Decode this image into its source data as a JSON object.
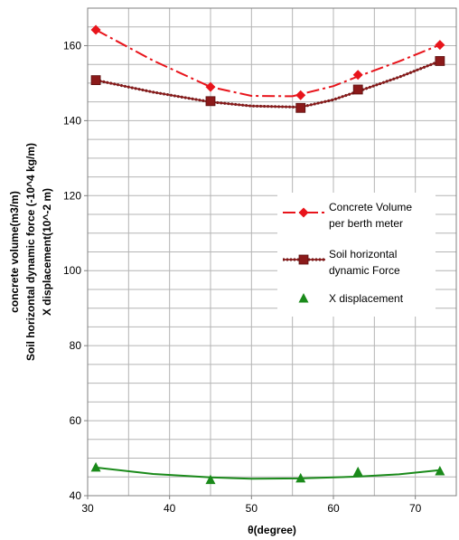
{
  "chart_data": {
    "type": "line",
    "xlabel": "θ(degree)",
    "ylabel_lines": [
      "concrete volume(m3/m)",
      "Soil horizontal dynamic force (-10^4 kg/m)",
      "X displacement(10^-2 m)"
    ],
    "xlim": [
      30,
      75
    ],
    "ylim": [
      40,
      170
    ],
    "x_ticks": [
      "30",
      "40",
      "50",
      "60",
      "70"
    ],
    "y_ticks": [
      "40",
      "60",
      "80",
      "100",
      "120",
      "140",
      "160"
    ],
    "grid": true,
    "legend_position": "right-middle",
    "series": [
      {
        "name": "Concrete Volume per berth meter",
        "legend_lines": [
          "Concrete Volume",
          "per berth meter"
        ],
        "color": "#e8141b",
        "marker": "diamond",
        "points": [
          [
            31,
            164.2
          ],
          [
            45,
            149.0
          ],
          [
            56,
            146.8
          ],
          [
            63,
            152.2
          ],
          [
            73,
            160.2
          ]
        ],
        "trend": [
          [
            31,
            164.2
          ],
          [
            38,
            156.0
          ],
          [
            45,
            149.0
          ],
          [
            50,
            146.6
          ],
          [
            55,
            146.5
          ],
          [
            60,
            149.2
          ],
          [
            63,
            151.8
          ],
          [
            68,
            155.8
          ],
          [
            73,
            160.2
          ]
        ]
      },
      {
        "name": "Soil horizontal dynamic Force",
        "legend_lines": [
          "Soil horizontal",
          "dynamic Force"
        ],
        "color": "#8b1a1a",
        "marker": "square",
        "points": [
          [
            31,
            150.8
          ],
          [
            45,
            145.2
          ],
          [
            56,
            143.4
          ],
          [
            63,
            148.3
          ],
          [
            73,
            155.9
          ]
        ],
        "trend": [
          [
            31,
            150.8
          ],
          [
            38,
            147.6
          ],
          [
            45,
            145.0
          ],
          [
            50,
            143.9
          ],
          [
            56,
            143.6
          ],
          [
            60,
            145.6
          ],
          [
            63,
            147.8
          ],
          [
            68,
            151.6
          ],
          [
            73,
            155.9
          ]
        ]
      },
      {
        "name": "X displacement",
        "legend_lines": [
          "X displacement"
        ],
        "color": "#1a8a1a",
        "marker": "triangle",
        "points": [
          [
            31,
            47.5
          ],
          [
            45,
            44.2
          ],
          [
            56,
            44.6
          ],
          [
            63,
            46.3
          ],
          [
            73,
            46.5
          ]
        ],
        "trend": [
          [
            31,
            47.5
          ],
          [
            38,
            45.8
          ],
          [
            45,
            44.9
          ],
          [
            50,
            44.5
          ],
          [
            56,
            44.6
          ],
          [
            63,
            45.1
          ],
          [
            68,
            45.7
          ],
          [
            73,
            46.8
          ]
        ]
      }
    ]
  }
}
